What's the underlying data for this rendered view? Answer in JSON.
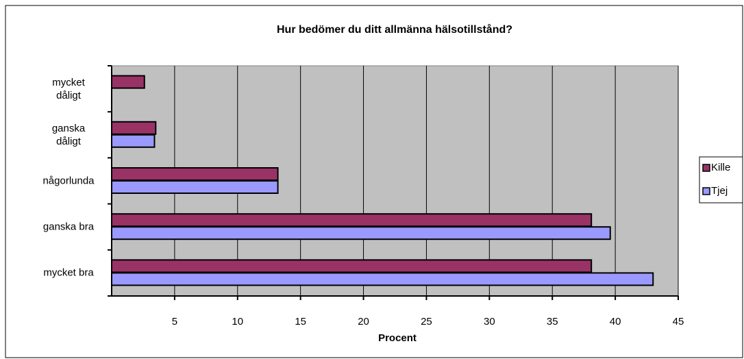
{
  "chart_data": {
    "type": "hbar",
    "title": "Hur bedömer du ditt allmänna hälsotillstånd?",
    "x_label": "Procent",
    "categories": [
      "mycket\ndåligt",
      "ganska\ndåligt",
      "någorlunda",
      "ganska bra",
      "mycket bra"
    ],
    "series": [
      {
        "name": "Kille",
        "color": "#993366",
        "values": [
          2.6,
          3.5,
          13.2,
          38.1,
          38.1
        ]
      },
      {
        "name": "Tjej",
        "color": "#9999ff",
        "values": [
          null,
          3.4,
          13.2,
          39.6,
          43.0
        ]
      }
    ],
    "xlim": [
      0,
      45
    ],
    "xticks": [
      5,
      10,
      15,
      20,
      25,
      30,
      35,
      40,
      45
    ],
    "grid": true,
    "legend": "right"
  }
}
